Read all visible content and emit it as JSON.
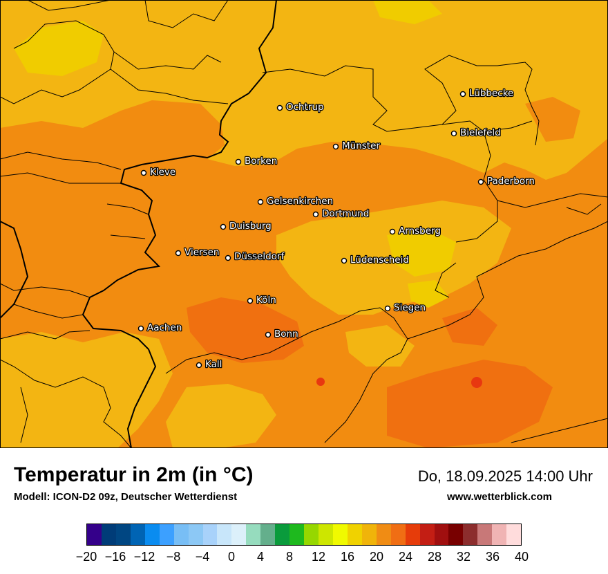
{
  "title": "Temperatur in 2m (in °C)",
  "model_info": "Modell: ICON-D2 09z, Deutscher Wetterdienst",
  "valid_time": "Do, 18.09.2025 14:00 Uhr",
  "website": "www.wetterblick.com",
  "colors": {
    "orange_dark": "#f07010",
    "orange": "#f28c10",
    "amber": "#f3b512",
    "yellow": "#f0cc00",
    "red_hot": "#e83810"
  },
  "cities": [
    {
      "name": "Lübbecke"
    },
    {
      "name": "Ochtrup"
    },
    {
      "name": "Bielefeld"
    },
    {
      "name": "Münster"
    },
    {
      "name": "Borken"
    },
    {
      "name": "Kleve"
    },
    {
      "name": "Paderborn"
    },
    {
      "name": "Gelsenkirchen"
    },
    {
      "name": "Dortmund"
    },
    {
      "name": "Duisburg"
    },
    {
      "name": "Arnsberg"
    },
    {
      "name": "Viersen"
    },
    {
      "name": "Düsseldorf"
    },
    {
      "name": "Lüdenscheid"
    },
    {
      "name": "Köln"
    },
    {
      "name": "Siegen"
    },
    {
      "name": "Aachen"
    },
    {
      "name": "Bonn"
    },
    {
      "name": "Kall"
    }
  ],
  "colorbar": {
    "colors": [
      "#34008a",
      "#003c78",
      "#004682",
      "#0064b4",
      "#0a8cf0",
      "#3ca0ff",
      "#78bef5",
      "#8cc8f5",
      "#a8d2fa",
      "#c8e6fa",
      "#dcf0fa",
      "#96dcbe",
      "#64af8c",
      "#0a9b3c",
      "#1eb91e",
      "#96d700",
      "#cde600",
      "#f0fa00",
      "#f0d200",
      "#f0b40a",
      "#f08c14",
      "#f06e14",
      "#e63c0a",
      "#c31e14",
      "#a00f0f",
      "#780000",
      "#8c2d2d",
      "#c87878",
      "#f0b4b4",
      "#ffdcdc"
    ],
    "tick_labels": [
      "−20",
      "−16",
      "−12",
      "−8",
      "−4",
      "0",
      "4",
      "8",
      "12",
      "16",
      "20",
      "24",
      "28",
      "32",
      "36",
      "40"
    ]
  }
}
